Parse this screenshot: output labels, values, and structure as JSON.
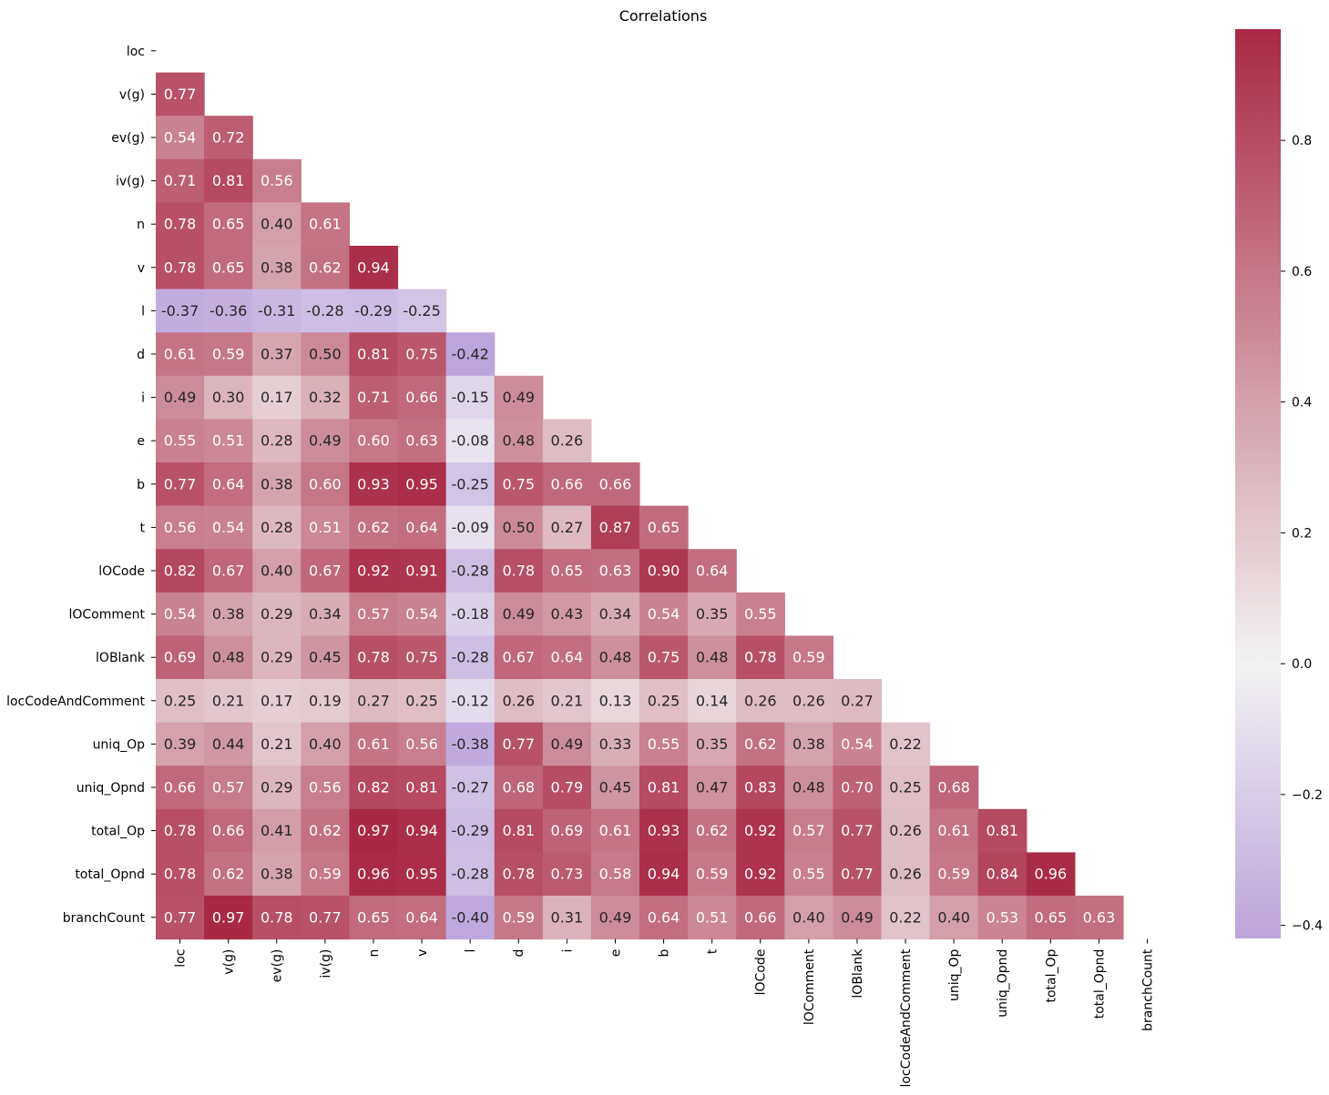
{
  "chart_data": {
    "type": "heatmap",
    "title": "Correlations",
    "xlabel": "",
    "ylabel": "",
    "variables": [
      "loc",
      "v(g)",
      "ev(g)",
      "iv(g)",
      "n",
      "v",
      "l",
      "d",
      "i",
      "e",
      "b",
      "t",
      "lOCode",
      "lOComment",
      "lOBlank",
      "locCodeAndComment",
      "uniq_Op",
      "uniq_Opnd",
      "total_Op",
      "total_Opnd",
      "branchCount"
    ],
    "mask": "upper-triangle-and-diagonal",
    "lower_triangle": [
      [],
      [
        0.77
      ],
      [
        0.54,
        0.72
      ],
      [
        0.71,
        0.81,
        0.56
      ],
      [
        0.78,
        0.65,
        0.4,
        0.61
      ],
      [
        0.78,
        0.65,
        0.38,
        0.62,
        0.94
      ],
      [
        -0.37,
        -0.36,
        -0.31,
        -0.28,
        -0.29,
        -0.25
      ],
      [
        0.61,
        0.59,
        0.37,
        0.5,
        0.81,
        0.75,
        -0.42
      ],
      [
        0.49,
        0.3,
        0.17,
        0.32,
        0.71,
        0.66,
        -0.15,
        0.49
      ],
      [
        0.55,
        0.51,
        0.28,
        0.49,
        0.6,
        0.63,
        -0.08,
        0.48,
        0.26
      ],
      [
        0.77,
        0.64,
        0.38,
        0.6,
        0.93,
        0.95,
        -0.25,
        0.75,
        0.66,
        0.66
      ],
      [
        0.56,
        0.54,
        0.28,
        0.51,
        0.62,
        0.64,
        -0.09,
        0.5,
        0.27,
        0.87,
        0.65
      ],
      [
        0.82,
        0.67,
        0.4,
        0.67,
        0.92,
        0.91,
        -0.28,
        0.78,
        0.65,
        0.63,
        0.9,
        0.64
      ],
      [
        0.54,
        0.38,
        0.29,
        0.34,
        0.57,
        0.54,
        -0.18,
        0.49,
        0.43,
        0.34,
        0.54,
        0.35,
        0.55
      ],
      [
        0.69,
        0.48,
        0.29,
        0.45,
        0.78,
        0.75,
        -0.28,
        0.67,
        0.64,
        0.48,
        0.75,
        0.48,
        0.78,
        0.59
      ],
      [
        0.25,
        0.21,
        0.17,
        0.19,
        0.27,
        0.25,
        -0.12,
        0.26,
        0.21,
        0.13,
        0.25,
        0.14,
        0.26,
        0.26,
        0.27
      ],
      [
        0.39,
        0.44,
        0.21,
        0.4,
        0.61,
        0.56,
        -0.38,
        0.77,
        0.49,
        0.33,
        0.55,
        0.35,
        0.62,
        0.38,
        0.54,
        0.22
      ],
      [
        0.66,
        0.57,
        0.29,
        0.56,
        0.82,
        0.81,
        -0.27,
        0.68,
        0.79,
        0.45,
        0.81,
        0.47,
        0.83,
        0.48,
        0.7,
        0.25,
        0.68
      ],
      [
        0.78,
        0.66,
        0.41,
        0.62,
        0.97,
        0.94,
        -0.29,
        0.81,
        0.69,
        0.61,
        0.93,
        0.62,
        0.92,
        0.57,
        0.77,
        0.26,
        0.61,
        0.81
      ],
      [
        0.78,
        0.62,
        0.38,
        0.59,
        0.96,
        0.95,
        -0.28,
        0.78,
        0.73,
        0.58,
        0.94,
        0.59,
        0.92,
        0.55,
        0.77,
        0.26,
        0.59,
        0.84,
        0.96
      ],
      [
        0.77,
        0.97,
        0.78,
        0.77,
        0.65,
        0.64,
        -0.4,
        0.59,
        0.31,
        0.49,
        0.64,
        0.51,
        0.66,
        0.4,
        0.49,
        0.22,
        0.4,
        0.53,
        0.65,
        0.63
      ]
    ],
    "colorbar": {
      "vmin": -0.42,
      "vmax": 0.97,
      "ticks": [
        -0.4,
        -0.2,
        0.0,
        0.2,
        0.4,
        0.6,
        0.8
      ],
      "tick_labels": [
        "−0.4",
        "−0.2",
        "0.0",
        "0.2",
        "0.4",
        "0.6",
        "0.8"
      ],
      "colors": {
        "negative": "#bca4dc",
        "center": "#f2f2f2",
        "positive": "#a92945"
      }
    }
  }
}
